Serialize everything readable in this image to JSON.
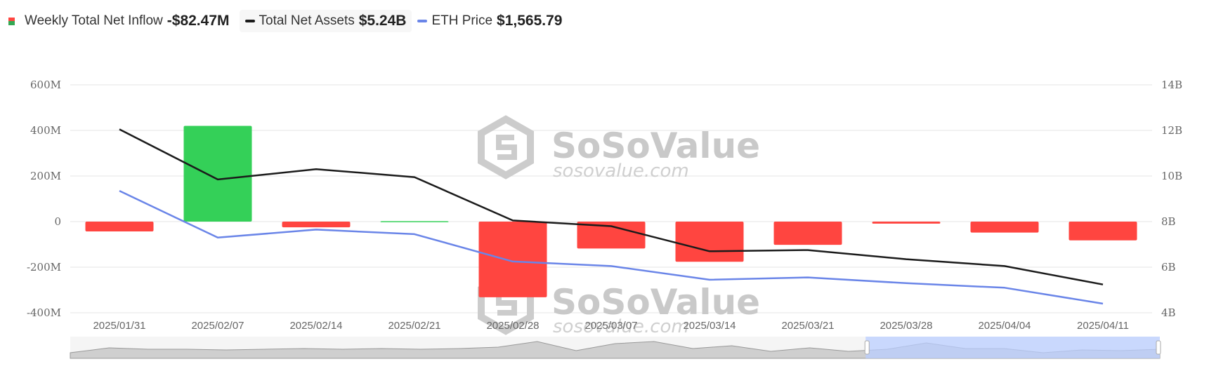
{
  "legend": {
    "inflow_label": "Weekly Total Net Inflow",
    "inflow_value": "-$82.47M",
    "assets_label": "Total Net Assets",
    "assets_value": "$5.24B",
    "eth_label": "ETH Price",
    "eth_value": "$1,565.79"
  },
  "watermark": {
    "brand": "SoSoValue",
    "site": "sosovalue.com"
  },
  "colors": {
    "positive": "#34d058",
    "negative": "#ff4540",
    "assets_line": "#1b1b1b",
    "eth_line": "#6a85e8",
    "grid": "#e6e6e6",
    "navigator_fill": "#cfcfcf",
    "navigator_selected": "#b9ceff"
  },
  "chart_data": {
    "type": "bar",
    "categories": [
      "2025/01/31",
      "2025/02/07",
      "2025/02/14",
      "2025/02/21",
      "2025/02/28",
      "2025/03/07",
      "2025/03/14",
      "2025/03/21",
      "2025/03/28",
      "2025/04/04",
      "2025/04/11"
    ],
    "y_left": {
      "ticks": [
        "600M",
        "400M",
        "200M",
        "0",
        "-200M",
        "-400M"
      ],
      "min": -400,
      "max": 600,
      "unit": "M"
    },
    "y_right": {
      "ticks": [
        "14B",
        "12B",
        "10B",
        "8B",
        "6B",
        "4B"
      ],
      "min": 4,
      "max": 14,
      "unit": "B"
    },
    "series": [
      {
        "name": "Weekly Total Net Inflow",
        "type": "bar",
        "axis": "left",
        "values": [
          -43,
          420,
          -25,
          2,
          -332,
          -118,
          -176,
          -102,
          -9,
          -48,
          -82.47
        ]
      },
      {
        "name": "Total Net Assets",
        "type": "line",
        "axis": "right",
        "values": [
          12.05,
          9.85,
          10.3,
          9.95,
          8.05,
          7.8,
          6.7,
          6.75,
          6.35,
          6.05,
          5.24
        ]
      },
      {
        "name": "ETH Price",
        "type": "line",
        "axis": "right",
        "values": [
          9.35,
          7.3,
          7.65,
          7.45,
          6.25,
          6.05,
          5.45,
          5.55,
          5.3,
          5.1,
          4.4
        ]
      }
    ],
    "navigator": {
      "values": [
        0.2,
        0.55,
        0.45,
        0.45,
        0.4,
        0.45,
        0.5,
        0.45,
        0.5,
        0.45,
        0.5,
        0.6,
        1.0,
        0.35,
        0.85,
        1.0,
        0.5,
        0.7,
        0.3,
        0.55,
        0.3,
        0.45,
        0.9,
        0.5,
        0.5,
        0.2,
        0.4,
        0.35,
        0.45
      ],
      "selected_range": [
        0.73,
        1.0
      ]
    },
    "grid": true,
    "legend_position": "top-left"
  }
}
